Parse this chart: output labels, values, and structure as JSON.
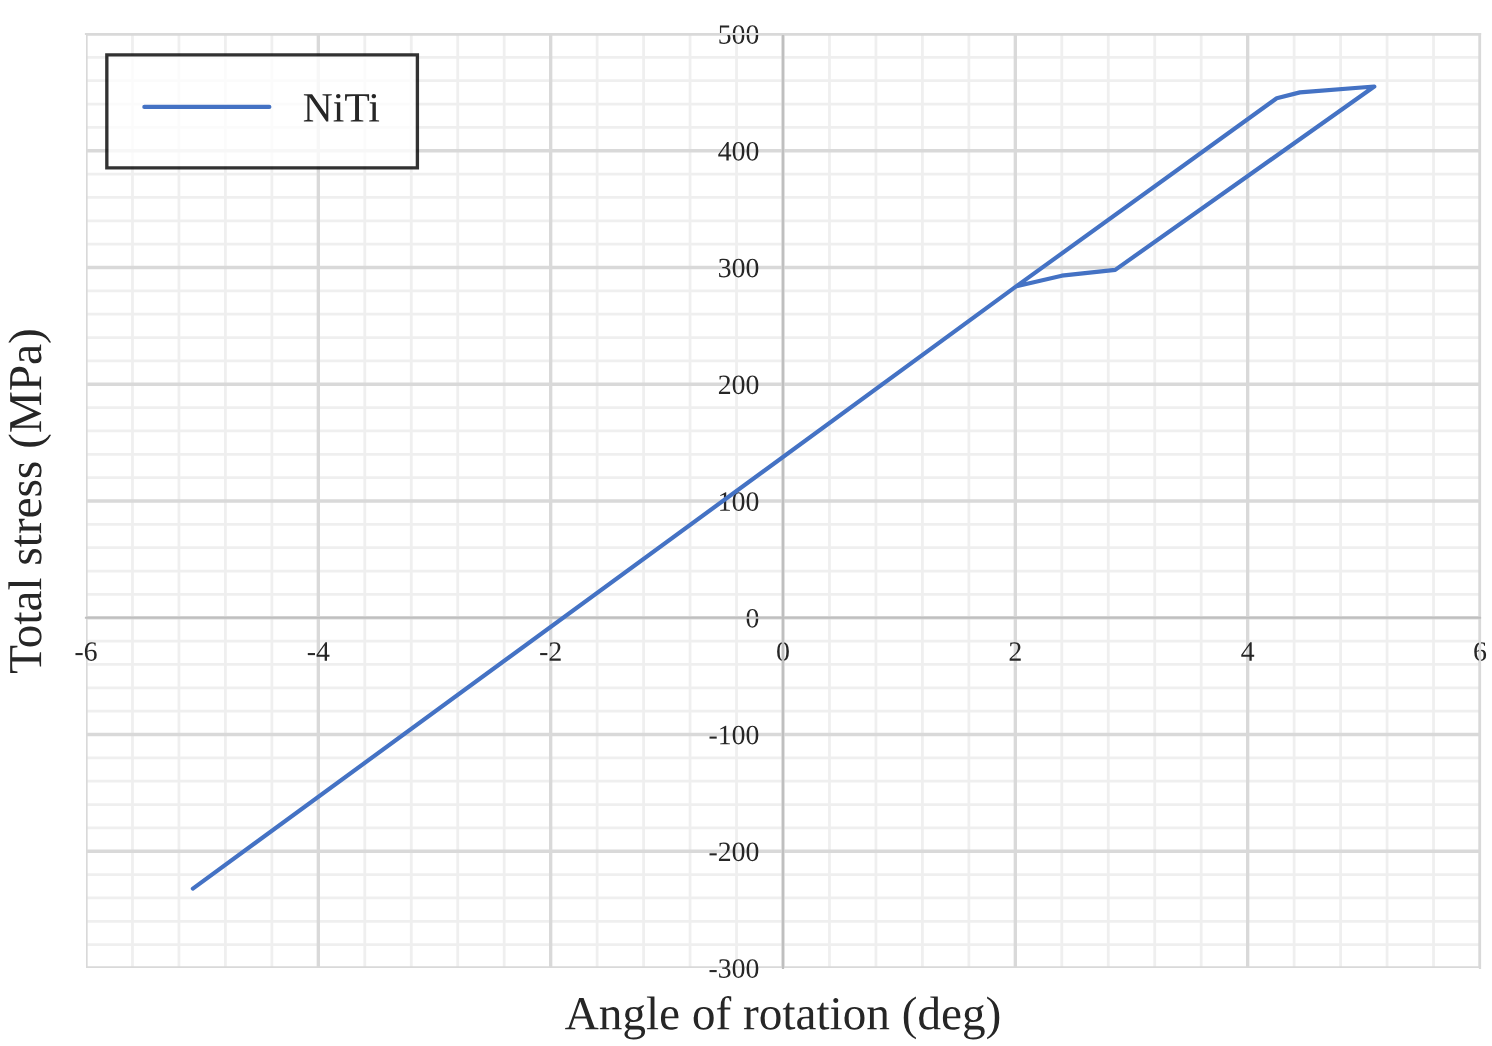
{
  "chart_data": {
    "type": "line",
    "xlabel": "Angle of rotation (deg)",
    "ylabel": "Total stress (MPa)",
    "xlim": [
      -6,
      6
    ],
    "xticks": [
      -6,
      -4,
      -2,
      0,
      2,
      4,
      6
    ],
    "ylim": [
      -300,
      500
    ],
    "yticks": [
      -300,
      -200,
      -100,
      0,
      100,
      200,
      300,
      400,
      500
    ],
    "grid": true,
    "legend": "top left",
    "marker": "none",
    "line_style": "solid",
    "series": [
      {
        "name": "NiTi",
        "color": "#4472c4",
        "x": [
          -5.08,
          2.01,
          2.4,
          2.86,
          5.09,
          4.45,
          4.25,
          2.01
        ],
        "values": [
          -232,
          284,
          293,
          298,
          455,
          450,
          445,
          284
        ]
      }
    ]
  }
}
